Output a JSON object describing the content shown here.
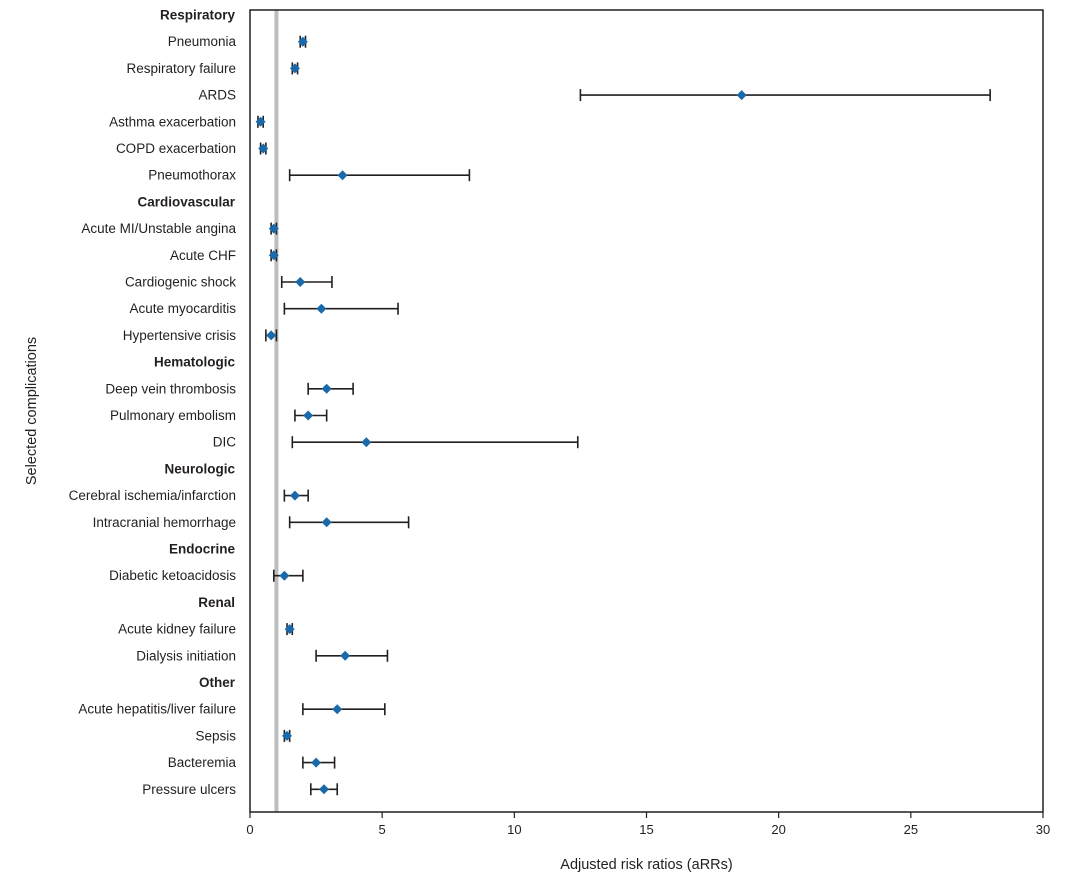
{
  "chart_data": {
    "type": "scatter",
    "xlabel": "Adjusted risk ratios (aRRs)",
    "ylabel": "Selected complications",
    "xlim": [
      0,
      30
    ],
    "xticks": [
      0,
      5,
      10,
      15,
      20,
      25,
      30
    ],
    "reference_line": 1,
    "colors": {
      "marker": "#1a6aab",
      "errorbar": "#231f20",
      "reference": "#bdbdbd",
      "frame": "#231f20"
    },
    "rows": [
      {
        "type": "group",
        "label": "Respiratory"
      },
      {
        "type": "item",
        "label": "Pneumonia",
        "value": 2.0,
        "lower": 1.9,
        "upper": 2.1
      },
      {
        "type": "item",
        "label": "Respiratory failure",
        "value": 1.7,
        "lower": 1.6,
        "upper": 1.8
      },
      {
        "type": "item",
        "label": "ARDS",
        "value": 18.6,
        "lower": 12.5,
        "upper": 28.0
      },
      {
        "type": "item",
        "label": "Asthma exacerbation",
        "value": 0.4,
        "lower": 0.3,
        "upper": 0.5
      },
      {
        "type": "item",
        "label": "COPD exacerbation",
        "value": 0.5,
        "lower": 0.4,
        "upper": 0.6
      },
      {
        "type": "item",
        "label": "Pneumothorax",
        "value": 3.5,
        "lower": 1.5,
        "upper": 8.3
      },
      {
        "type": "group",
        "label": "Cardiovascular"
      },
      {
        "type": "item",
        "label": "Acute MI/Unstable angina",
        "value": 0.9,
        "lower": 0.8,
        "upper": 1.0
      },
      {
        "type": "item",
        "label": "Acute CHF",
        "value": 0.9,
        "lower": 0.8,
        "upper": 1.0
      },
      {
        "type": "item",
        "label": "Cardiogenic shock",
        "value": 1.9,
        "lower": 1.2,
        "upper": 3.1
      },
      {
        "type": "item",
        "label": "Acute myocarditis",
        "value": 2.7,
        "lower": 1.3,
        "upper": 5.6
      },
      {
        "type": "item",
        "label": "Hypertensive crisis",
        "value": 0.8,
        "lower": 0.6,
        "upper": 1.0
      },
      {
        "type": "group",
        "label": "Hematologic"
      },
      {
        "type": "item",
        "label": "Deep vein thrombosis",
        "value": 2.9,
        "lower": 2.2,
        "upper": 3.9
      },
      {
        "type": "item",
        "label": "Pulmonary embolism",
        "value": 2.2,
        "lower": 1.7,
        "upper": 2.9
      },
      {
        "type": "item",
        "label": "DIC",
        "value": 4.4,
        "lower": 1.6,
        "upper": 12.4
      },
      {
        "type": "group",
        "label": "Neurologic"
      },
      {
        "type": "item",
        "label": "Cerebral ischemia/infarction",
        "value": 1.7,
        "lower": 1.3,
        "upper": 2.2
      },
      {
        "type": "item",
        "label": "Intracranial hemorrhage",
        "value": 2.9,
        "lower": 1.5,
        "upper": 6.0
      },
      {
        "type": "group",
        "label": "Endocrine"
      },
      {
        "type": "item",
        "label": "Diabetic ketoacidosis",
        "value": 1.3,
        "lower": 0.9,
        "upper": 2.0
      },
      {
        "type": "group",
        "label": "Renal"
      },
      {
        "type": "item",
        "label": "Acute kidney failure",
        "value": 1.5,
        "lower": 1.4,
        "upper": 1.6
      },
      {
        "type": "item",
        "label": "Dialysis initiation",
        "value": 3.6,
        "lower": 2.5,
        "upper": 5.2
      },
      {
        "type": "group",
        "label": "Other"
      },
      {
        "type": "item",
        "label": "Acute hepatitis/liver failure",
        "value": 3.3,
        "lower": 2.0,
        "upper": 5.1
      },
      {
        "type": "item",
        "label": "Sepsis",
        "value": 1.4,
        "lower": 1.3,
        "upper": 1.5
      },
      {
        "type": "item",
        "label": "Bacteremia",
        "value": 2.5,
        "lower": 2.0,
        "upper": 3.2
      },
      {
        "type": "item",
        "label": "Pressure ulcers",
        "value": 2.8,
        "lower": 2.3,
        "upper": 3.3
      }
    ]
  }
}
